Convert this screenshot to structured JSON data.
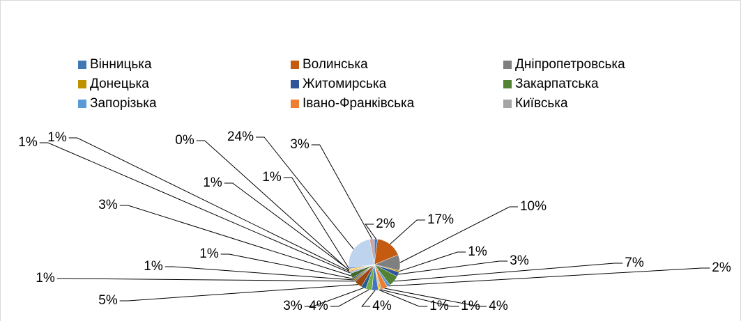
{
  "chart_data": {
    "type": "pie",
    "categories": [
      "Вінницька",
      "Волинська",
      "Дніпропетровська",
      "Донецька",
      "Житомирська",
      "Закарпатська",
      "Запорізька",
      "Івано-Франківська",
      "Київська",
      null,
      null,
      null,
      null,
      null,
      null,
      null,
      null,
      null,
      null,
      null,
      null,
      null,
      null,
      null,
      null
    ],
    "values": [
      2,
      17,
      10,
      1,
      3,
      7,
      2,
      4,
      1,
      1,
      4,
      4,
      3,
      5,
      1,
      1,
      1,
      3,
      1,
      1,
      0,
      1,
      1,
      24,
      3
    ],
    "value_labels": [
      "2%",
      "17%",
      "10%",
      "1%",
      "3%",
      "7%",
      "2%",
      "4%",
      "1%",
      "1%",
      "4%",
      "4%",
      "3%",
      "5%",
      "1%",
      "1%",
      "1%",
      "3%",
      "1%",
      "1%",
      "0%",
      "1%",
      "1%",
      "24%",
      "3%"
    ],
    "colors": [
      "#3f78b4",
      "#c55a11",
      "#7f7f7f",
      "#bf9000",
      "#2f5597",
      "#548235",
      "#5b9bd5",
      "#ed7d31",
      "#a5a5a5",
      "#ffc000",
      "#4472c4",
      "#70ad47",
      "#255e91",
      "#9e480e",
      "#636363",
      "#997300",
      "#264478",
      "#43682b",
      "#7cafdd",
      "#f1975a",
      "#b7b7b7",
      "#ffcd33",
      "#698ed0",
      "#bdd3ee",
      "#c9a5a5"
    ],
    "legend": "top"
  }
}
